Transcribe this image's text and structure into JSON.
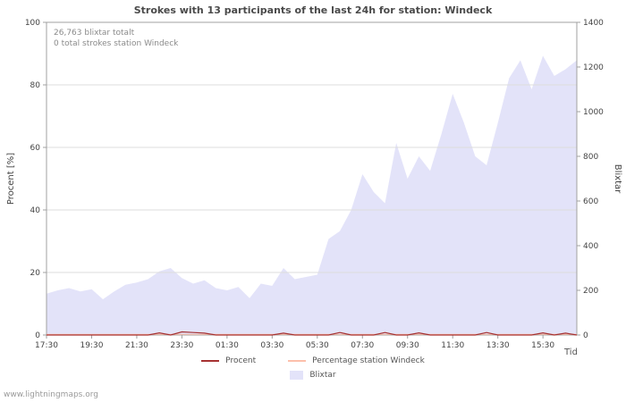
{
  "title": "Strokes with 13 participants of the last 24h for station: Windeck",
  "annotations": {
    "line1": "26,763 blixtar totalt",
    "line2": "0 total strokes station Windeck"
  },
  "watermark": "www.lightningmaps.org",
  "axes": {
    "left_label": "Procent  [%]",
    "right_label": "Blixtar",
    "x_label": "Tid"
  },
  "legend": {
    "procent": "Procent",
    "station": "Percentage station Windeck",
    "blixtar": "Blixtar"
  },
  "colors": {
    "area": "#e3e3f9",
    "procent_line": "#a63232",
    "station_line": "#fcc0ab",
    "grid": "#dcdcdc",
    "axis": "#a0a0a0",
    "tick_text": "#444444"
  },
  "chart_data": {
    "type": "area",
    "title": "Strokes with 13 participants of the last 24h for station: Windeck",
    "xlabel": "Tid",
    "x_ticks": [
      "17:30",
      "19:30",
      "21:30",
      "23:30",
      "01:30",
      "03:30",
      "05:30",
      "07:30",
      "09:30",
      "11:30",
      "13:30",
      "15:30"
    ],
    "x_tick_indices": [
      0,
      4,
      8,
      12,
      16,
      20,
      24,
      28,
      32,
      36,
      40,
      44
    ],
    "x_interval_minutes": 30,
    "left_axis": {
      "label": "Procent [%]",
      "min": 0,
      "max": 100,
      "ticks": [
        0,
        20,
        40,
        60,
        80,
        100
      ]
    },
    "right_axis": {
      "label": "Blixtar",
      "min": 0,
      "max": 1400,
      "ticks": [
        0,
        200,
        400,
        600,
        800,
        1000,
        1200,
        1400
      ]
    },
    "grid": true,
    "legend_position": "bottom",
    "series": [
      {
        "name": "Blixtar",
        "type": "area",
        "axis": "right",
        "color": "#e3e3f9",
        "values": [
          185,
          200,
          210,
          195,
          205,
          160,
          195,
          225,
          235,
          250,
          285,
          300,
          255,
          230,
          245,
          210,
          200,
          215,
          165,
          230,
          220,
          300,
          250,
          260,
          270,
          430,
          465,
          560,
          720,
          640,
          590,
          860,
          700,
          800,
          735,
          900,
          1080,
          950,
          800,
          760,
          950,
          1150,
          1230,
          1100,
          1250,
          1160,
          1190,
          1230
        ]
      },
      {
        "name": "Procent",
        "type": "line",
        "axis": "left",
        "color": "#a63232",
        "values": [
          0,
          0,
          0,
          0,
          0,
          0,
          0,
          0,
          0,
          0,
          0.7,
          0,
          1,
          0.8,
          0.6,
          0,
          0,
          0,
          0,
          0,
          0,
          0.6,
          0,
          0,
          0,
          0,
          0.8,
          0,
          0,
          0,
          0.8,
          0,
          0,
          0.7,
          0,
          0,
          0,
          0,
          0,
          0.8,
          0,
          0,
          0,
          0,
          0.7,
          0,
          0.6,
          0
        ]
      },
      {
        "name": "Percentage station Windeck",
        "type": "line",
        "axis": "left",
        "color": "#fcc0ab",
        "values": [
          0,
          0,
          0,
          0,
          0,
          0,
          0,
          0,
          0,
          0,
          0,
          0,
          0,
          0,
          0,
          0,
          0,
          0,
          0,
          0,
          0,
          0,
          0,
          0,
          0,
          0,
          0,
          0,
          0,
          0,
          0,
          0,
          0,
          0,
          0,
          0,
          0,
          0,
          0,
          0,
          0,
          0,
          0,
          0,
          0,
          0,
          0,
          0
        ]
      }
    ]
  }
}
